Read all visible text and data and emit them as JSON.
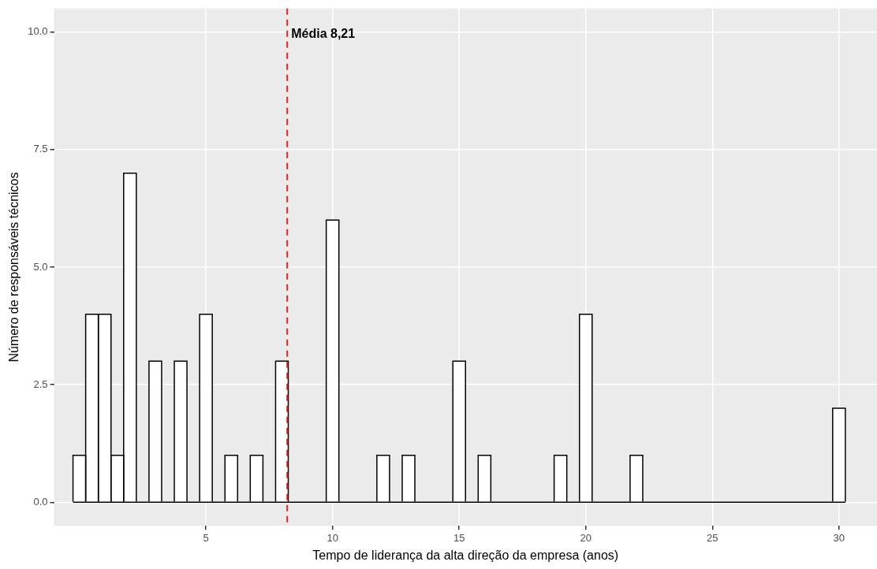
{
  "chart_data": {
    "type": "histogram",
    "xlabel": "Tempo de liderança da alta direção da empresa (anos)",
    "ylabel": "Número de responsáveis técnicos",
    "bins": [
      -0.25,
      0.25,
      0.75,
      1.25,
      1.75,
      2.25,
      2.75,
      3.25,
      3.75,
      4.25,
      4.75,
      5.25,
      5.75,
      6.25,
      6.75,
      7.25,
      7.75,
      8.25,
      8.75,
      9.25,
      9.75,
      10.25,
      10.75,
      11.25,
      11.75,
      12.25,
      12.75,
      13.25,
      13.75,
      14.25,
      14.75,
      15.25,
      15.75,
      16.25,
      16.75,
      17.25,
      17.75,
      18.25,
      18.75,
      19.25,
      19.75,
      20.25,
      20.75,
      21.25,
      21.75,
      22.25,
      22.75,
      23.25,
      23.75,
      24.25,
      24.75,
      25.25,
      25.75,
      26.25,
      26.75,
      27.25,
      27.75,
      28.25,
      28.75,
      29.25,
      29.75,
      30.25
    ],
    "values": [
      1,
      4,
      4,
      1,
      7,
      0,
      3,
      0,
      3,
      0,
      4,
      0,
      1,
      0,
      1,
      0,
      3,
      0,
      0,
      0,
      6,
      0,
      0,
      0,
      1,
      0,
      1,
      0,
      0,
      0,
      3,
      0,
      1,
      0,
      0,
      0,
      0,
      0,
      1,
      0,
      4,
      0,
      0,
      0,
      1,
      0,
      0,
      0,
      0,
      0,
      0,
      0,
      0,
      0,
      0,
      0,
      0,
      0,
      0,
      0,
      2
    ],
    "color": "#ffffff",
    "xlim": [
      -1,
      31.5
    ],
    "xticks": [
      5,
      10,
      15,
      20,
      25,
      30
    ],
    "ylim": [
      -0.5,
      10.5
    ],
    "yticks": [
      {
        "value": 0,
        "label": "0.0"
      },
      {
        "value": 2.5,
        "label": "2.5"
      },
      {
        "value": 5,
        "label": "5.0"
      },
      {
        "value": 7.5,
        "label": "7.5"
      },
      {
        "value": 10,
        "label": "10.0"
      }
    ],
    "ref_lines": [
      {
        "axis": "x",
        "value": 8.21,
        "label": "Média 8,21",
        "color": "#e8211d",
        "line_style": "dashed"
      }
    ],
    "grid": true,
    "legend": false
  }
}
